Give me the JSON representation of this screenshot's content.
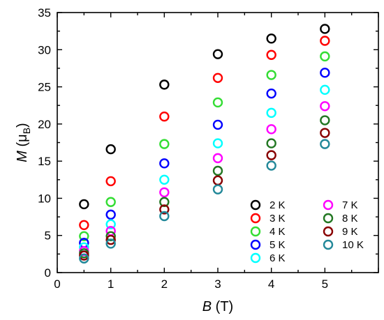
{
  "chart_data": {
    "type": "scatter",
    "x": [
      0.5,
      1,
      2,
      3,
      4,
      5
    ],
    "xlim": [
      0,
      6
    ],
    "ylim": [
      0,
      35
    ],
    "xticks": [
      0,
      1,
      2,
      3,
      4,
      5
    ],
    "yticks": [
      0,
      5,
      10,
      15,
      20,
      25,
      30,
      35
    ],
    "xlabel": {
      "italic": "B",
      "unit": "(T)"
    },
    "ylabel": {
      "italic": "M",
      "unit_base": "(μ",
      "unit_sub": "B",
      "unit_close": ")"
    },
    "grid": false,
    "legend_position": "lower-right",
    "marker": "open-circle",
    "series": [
      {
        "name": "2 K",
        "color": "#000000",
        "values": [
          9.2,
          16.6,
          25.3,
          29.4,
          31.5,
          32.8
        ]
      },
      {
        "name": "3 K",
        "color": "#ff0000",
        "values": [
          6.4,
          12.3,
          21.0,
          26.2,
          29.3,
          31.2
        ]
      },
      {
        "name": "4 K",
        "color": "#33dd33",
        "values": [
          4.9,
          9.5,
          17.3,
          22.9,
          26.6,
          29.1
        ]
      },
      {
        "name": "5 K",
        "color": "#0000ff",
        "values": [
          4.0,
          7.8,
          14.7,
          19.9,
          24.1,
          26.9
        ]
      },
      {
        "name": "6 K",
        "color": "#00ffff",
        "values": [
          3.4,
          6.5,
          12.5,
          17.4,
          21.5,
          24.6
        ]
      },
      {
        "name": "7 K",
        "color": "#ff00ff",
        "values": [
          2.9,
          5.6,
          10.8,
          15.4,
          19.3,
          22.4
        ]
      },
      {
        "name": "8 K",
        "color": "#227722",
        "values": [
          2.6,
          4.9,
          9.5,
          13.7,
          17.4,
          20.5
        ]
      },
      {
        "name": "9 K",
        "color": "#880000",
        "values": [
          2.3,
          4.4,
          8.5,
          12.4,
          15.8,
          18.8
        ]
      },
      {
        "name": "10 K",
        "color": "#228899",
        "values": [
          1.9,
          3.9,
          7.6,
          11.2,
          14.4,
          17.3
        ]
      }
    ]
  }
}
